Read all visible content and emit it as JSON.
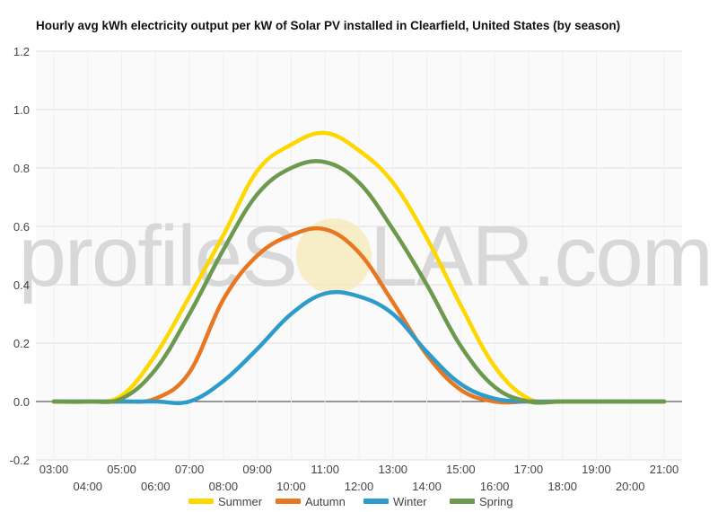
{
  "chart_data": {
    "type": "line",
    "title": "Hourly avg kWh electricity output per kW of Solar PV installed in Clearfield, United States (by season)",
    "xlabel": "",
    "ylabel": "",
    "categories": [
      "03:00",
      "04:00",
      "05:00",
      "06:00",
      "07:00",
      "08:00",
      "09:00",
      "10:00",
      "11:00",
      "12:00",
      "13:00",
      "14:00",
      "15:00",
      "16:00",
      "17:00",
      "18:00",
      "19:00",
      "20:00",
      "21:00"
    ],
    "ylim": [
      -0.2,
      1.2
    ],
    "yticks": [
      "-0.2",
      "0.0",
      "0.2",
      "0.4",
      "0.6",
      "0.8",
      "1.0",
      "1.2"
    ],
    "grid": true,
    "legend_position": "bottom",
    "watermark": {
      "left": "profileS",
      "right": "LAR.com"
    },
    "series": [
      {
        "name": "Summer",
        "color": "#FFD700",
        "values": [
          0,
          0,
          0.02,
          0.16,
          0.36,
          0.57,
          0.79,
          0.88,
          0.92,
          0.86,
          0.75,
          0.56,
          0.33,
          0.12,
          0.01,
          0,
          0,
          0,
          0
        ]
      },
      {
        "name": "Autumn",
        "color": "#E87722",
        "values": [
          0,
          0,
          0,
          0.01,
          0.1,
          0.35,
          0.5,
          0.57,
          0.59,
          0.51,
          0.34,
          0.16,
          0.04,
          0,
          0,
          0,
          0,
          0,
          0
        ]
      },
      {
        "name": "Winter",
        "color": "#2E9CCA",
        "values": [
          0,
          0,
          0,
          0,
          0,
          0.07,
          0.18,
          0.3,
          0.37,
          0.36,
          0.3,
          0.17,
          0.06,
          0.01,
          0,
          0,
          0,
          0,
          0
        ]
      },
      {
        "name": "Spring",
        "color": "#6B9A4E",
        "values": [
          0,
          0,
          0.01,
          0.11,
          0.3,
          0.52,
          0.71,
          0.8,
          0.82,
          0.75,
          0.59,
          0.4,
          0.19,
          0.05,
          0,
          0,
          0,
          0,
          0
        ]
      }
    ]
  }
}
